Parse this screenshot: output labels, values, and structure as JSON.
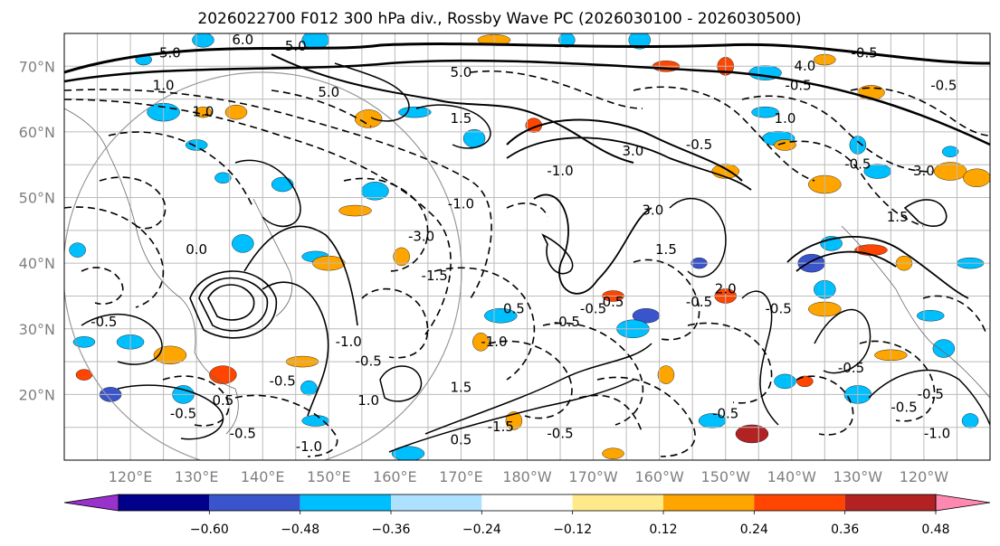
{
  "title": "2026022700 F012 300 hPa div., Rossby Wave PC (2026030100 - 2026030500)",
  "map": {
    "lon_range": [
      110,
      250
    ],
    "lat_range": [
      10,
      75
    ],
    "lat_ticks": [
      {
        "value": 70,
        "label": "70°N"
      },
      {
        "value": 60,
        "label": "60°N"
      },
      {
        "value": 50,
        "label": "50°N"
      },
      {
        "value": 40,
        "label": "40°N"
      },
      {
        "value": 30,
        "label": "30°N"
      },
      {
        "value": 20,
        "label": "20°N"
      }
    ],
    "lon_ticks": [
      {
        "value": 120,
        "label": "120°E"
      },
      {
        "value": 130,
        "label": "130°E"
      },
      {
        "value": 140,
        "label": "140°E"
      },
      {
        "value": 150,
        "label": "150°E"
      },
      {
        "value": 160,
        "label": "160°E"
      },
      {
        "value": 170,
        "label": "170°E"
      },
      {
        "value": 180,
        "label": "180°W"
      },
      {
        "value": 190,
        "label": "170°W"
      },
      {
        "value": 200,
        "label": "160°W"
      },
      {
        "value": 210,
        "label": "150°W"
      },
      {
        "value": 220,
        "label": "140°W"
      },
      {
        "value": 230,
        "label": "130°W"
      },
      {
        "value": 240,
        "label": "120°W"
      }
    ]
  },
  "colorbar": {
    "colors": [
      "#9932cc",
      "#00008b",
      "#3a54cc",
      "#00bfff",
      "#aee0ff",
      "#ffffff",
      "#ffea8a",
      "#ffa500",
      "#ff4500",
      "#b22222",
      "#ff88b0"
    ],
    "labels": [
      "−0.60",
      "−0.48",
      "−0.36",
      "−0.24",
      "−0.12",
      "0.12",
      "0.24",
      "0.36",
      "0.48",
      "0.60"
    ],
    "bounds": [
      -0.6,
      -0.48,
      -0.36,
      -0.24,
      -0.12,
      0.12,
      0.24,
      0.36,
      0.48,
      0.6
    ]
  },
  "contour_labels": [
    {
      "text": "5.0",
      "lon": 126,
      "lat": 72
    },
    {
      "text": "6.0",
      "lon": 137,
      "lat": 74
    },
    {
      "text": "5.0",
      "lon": 145,
      "lat": 73
    },
    {
      "text": "5.0",
      "lon": 170,
      "lat": 69
    },
    {
      "text": "5.0",
      "lon": 150,
      "lat": 66
    },
    {
      "text": "1.0",
      "lon": 125,
      "lat": 67
    },
    {
      "text": "1.0",
      "lon": 131,
      "lat": 63
    },
    {
      "text": "1.5",
      "lon": 170,
      "lat": 62
    },
    {
      "text": "-1.0",
      "lon": 185,
      "lat": 54
    },
    {
      "text": "3.0",
      "lon": 196,
      "lat": 57
    },
    {
      "text": "3.0",
      "lon": 199,
      "lat": 48
    },
    {
      "text": "1.5",
      "lon": 201,
      "lat": 42
    },
    {
      "text": "-1.0",
      "lon": 170,
      "lat": 49
    },
    {
      "text": "-3.0",
      "lon": 164,
      "lat": 44
    },
    {
      "text": "-1.5",
      "lon": 166,
      "lat": 38
    },
    {
      "text": "0.5",
      "lon": 178,
      "lat": 33
    },
    {
      "text": "-0.5",
      "lon": 190,
      "lat": 33
    },
    {
      "text": "-0.5",
      "lon": 186,
      "lat": 31
    },
    {
      "text": "-1.0",
      "lon": 175,
      "lat": 28
    },
    {
      "text": "-1.0",
      "lon": 153,
      "lat": 28
    },
    {
      "text": "-0.5",
      "lon": 156,
      "lat": 25
    },
    {
      "text": "-0.5",
      "lon": 143,
      "lat": 22
    },
    {
      "text": "-0.5",
      "lon": 128,
      "lat": 17
    },
    {
      "text": "-0.5",
      "lon": 137,
      "lat": 14
    },
    {
      "text": "-1.0",
      "lon": 147,
      "lat": 12
    },
    {
      "text": "0.5",
      "lon": 134,
      "lat": 19
    },
    {
      "text": "1.0",
      "lon": 156,
      "lat": 19
    },
    {
      "text": "1.5",
      "lon": 170,
      "lat": 21
    },
    {
      "text": "-1.5",
      "lon": 176,
      "lat": 15
    },
    {
      "text": "-0.5",
      "lon": 185,
      "lat": 14
    },
    {
      "text": "0.5",
      "lon": 170,
      "lat": 13
    },
    {
      "text": "0.0",
      "lon": 130,
      "lat": 42
    },
    {
      "text": "-0.5",
      "lon": 206,
      "lat": 34
    },
    {
      "text": "-0.5",
      "lon": 218,
      "lat": 33
    },
    {
      "text": "-0.5",
      "lon": 229,
      "lat": 24
    },
    {
      "text": "-0.5",
      "lon": 241,
      "lat": 20
    },
    {
      "text": "-0.5",
      "lon": 237,
      "lat": 18
    },
    {
      "text": "-1.0",
      "lon": 242,
      "lat": 14
    },
    {
      "text": "-0.5",
      "lon": 210,
      "lat": 17
    },
    {
      "text": "2.0",
      "lon": 210,
      "lat": 36
    },
    {
      "text": "-0.5",
      "lon": 206,
      "lat": 58
    },
    {
      "text": "-0.5",
      "lon": 221,
      "lat": 67
    },
    {
      "text": "1.0",
      "lon": 219,
      "lat": 62
    },
    {
      "text": "-0.5",
      "lon": 230,
      "lat": 55
    },
    {
      "text": "3.0",
      "lon": 240,
      "lat": 54
    },
    {
      "text": "1.5",
      "lon": 236,
      "lat": 47
    },
    {
      "text": "-0.5",
      "lon": 243,
      "lat": 67
    },
    {
      "text": "-0.5",
      "lon": 231,
      "lat": 72
    },
    {
      "text": "4.0",
      "lon": 222,
      "lat": 70
    },
    {
      "text": "-0.5",
      "lon": 116,
      "lat": 31
    },
    {
      "text": "0.5",
      "lon": 193,
      "lat": 34
    }
  ],
  "shaded_patches": [
    {
      "lon": 122,
      "lat": 71,
      "color": "#00bfff"
    },
    {
      "lon": 131,
      "lat": 74,
      "color": "#00bfff"
    },
    {
      "lon": 148,
      "lat": 74,
      "color": "#00bfff"
    },
    {
      "lon": 175,
      "lat": 74,
      "color": "#ffa500"
    },
    {
      "lon": 186,
      "lat": 74,
      "color": "#00bfff"
    },
    {
      "lon": 197,
      "lat": 74,
      "color": "#00bfff"
    },
    {
      "lon": 201,
      "lat": 70,
      "color": "#ff4500"
    },
    {
      "lon": 216,
      "lat": 69,
      "color": "#00bfff"
    },
    {
      "lon": 210,
      "lat": 70,
      "color": "#ff4500"
    },
    {
      "lon": 225,
      "lat": 71,
      "color": "#ffa500"
    },
    {
      "lon": 232,
      "lat": 66,
      "color": "#ffa500"
    },
    {
      "lon": 125,
      "lat": 63,
      "color": "#00bfff"
    },
    {
      "lon": 131,
      "lat": 63,
      "color": "#ffa500"
    },
    {
      "lon": 136,
      "lat": 63,
      "color": "#ffa500"
    },
    {
      "lon": 156,
      "lat": 62,
      "color": "#ffa500"
    },
    {
      "lon": 163,
      "lat": 63,
      "color": "#00bfff"
    },
    {
      "lon": 181,
      "lat": 61,
      "color": "#ff4500"
    },
    {
      "lon": 172,
      "lat": 59,
      "color": "#00bfff"
    },
    {
      "lon": 216,
      "lat": 63,
      "color": "#00bfff"
    },
    {
      "lon": 218,
      "lat": 59,
      "color": "#00bfff"
    },
    {
      "lon": 230,
      "lat": 58,
      "color": "#00bfff"
    },
    {
      "lon": 130,
      "lat": 58,
      "color": "#00bfff"
    },
    {
      "lon": 210,
      "lat": 54,
      "color": "#ffa500"
    },
    {
      "lon": 225,
      "lat": 52,
      "color": "#ffa500"
    },
    {
      "lon": 134,
      "lat": 53,
      "color": "#00bfff"
    },
    {
      "lon": 143,
      "lat": 52,
      "color": "#00bfff"
    },
    {
      "lon": 157,
      "lat": 51,
      "color": "#00bfff"
    },
    {
      "lon": 154,
      "lat": 48,
      "color": "#ffa500"
    },
    {
      "lon": 112,
      "lat": 42,
      "color": "#00bfff"
    },
    {
      "lon": 137,
      "lat": 43,
      "color": "#00bfff"
    },
    {
      "lon": 148,
      "lat": 41,
      "color": "#00bfff"
    },
    {
      "lon": 150,
      "lat": 40,
      "color": "#ffa500"
    },
    {
      "lon": 161,
      "lat": 41,
      "color": "#ffa500"
    },
    {
      "lon": 193,
      "lat": 35,
      "color": "#ff4500"
    },
    {
      "lon": 198,
      "lat": 32,
      "color": "#3a54cc"
    },
    {
      "lon": 196,
      "lat": 30,
      "color": "#00bfff"
    },
    {
      "lon": 206,
      "lat": 40,
      "color": "#3a54cc"
    },
    {
      "lon": 210,
      "lat": 35,
      "color": "#ff4500"
    },
    {
      "lon": 223,
      "lat": 40,
      "color": "#3a54cc"
    },
    {
      "lon": 232,
      "lat": 42,
      "color": "#ff4500"
    },
    {
      "lon": 237,
      "lat": 40,
      "color": "#ffa500"
    },
    {
      "lon": 225,
      "lat": 36,
      "color": "#00bfff"
    },
    {
      "lon": 247,
      "lat": 40,
      "color": "#00bfff"
    },
    {
      "lon": 176,
      "lat": 32,
      "color": "#00bfff"
    },
    {
      "lon": 173,
      "lat": 28,
      "color": "#ffa500"
    },
    {
      "lon": 113,
      "lat": 28,
      "color": "#00bfff"
    },
    {
      "lon": 120,
      "lat": 28,
      "color": "#00bfff"
    },
    {
      "lon": 126,
      "lat": 26,
      "color": "#ffa500"
    },
    {
      "lon": 113,
      "lat": 23,
      "color": "#ff4500"
    },
    {
      "lon": 117,
      "lat": 20,
      "color": "#3a54cc"
    },
    {
      "lon": 134,
      "lat": 23,
      "color": "#ff4500"
    },
    {
      "lon": 146,
      "lat": 25,
      "color": "#ffa500"
    },
    {
      "lon": 147,
      "lat": 21,
      "color": "#00bfff"
    },
    {
      "lon": 128,
      "lat": 20,
      "color": "#00bfff"
    },
    {
      "lon": 148,
      "lat": 16,
      "color": "#00bfff"
    },
    {
      "lon": 162,
      "lat": 11,
      "color": "#00bfff"
    },
    {
      "lon": 178,
      "lat": 16,
      "color": "#ffa500"
    },
    {
      "lon": 193,
      "lat": 11,
      "color": "#ffa500"
    },
    {
      "lon": 208,
      "lat": 16,
      "color": "#00bfff"
    },
    {
      "lon": 214,
      "lat": 14,
      "color": "#b22222"
    },
    {
      "lon": 222,
      "lat": 22,
      "color": "#ff4500"
    },
    {
      "lon": 219,
      "lat": 22,
      "color": "#00bfff"
    },
    {
      "lon": 230,
      "lat": 20,
      "color": "#00bfff"
    },
    {
      "lon": 235,
      "lat": 26,
      "color": "#ffa500"
    },
    {
      "lon": 247,
      "lat": 16,
      "color": "#00bfff"
    },
    {
      "lon": 243,
      "lat": 27,
      "color": "#00bfff"
    },
    {
      "lon": 241,
      "lat": 32,
      "color": "#00bfff"
    },
    {
      "lon": 225,
      "lat": 33,
      "color": "#ffa500"
    },
    {
      "lon": 201,
      "lat": 23,
      "color": "#ffa500"
    },
    {
      "lon": 219,
      "lat": 58,
      "color": "#ffa500"
    },
    {
      "lon": 233,
      "lat": 54,
      "color": "#00bfff"
    },
    {
      "lon": 244,
      "lat": 54,
      "color": "#ffa500"
    },
    {
      "lon": 244,
      "lat": 57,
      "color": "#00bfff"
    },
    {
      "lon": 226,
      "lat": 43,
      "color": "#00bfff"
    },
    {
      "lon": 248,
      "lat": 53,
      "color": "#ffa500"
    }
  ]
}
